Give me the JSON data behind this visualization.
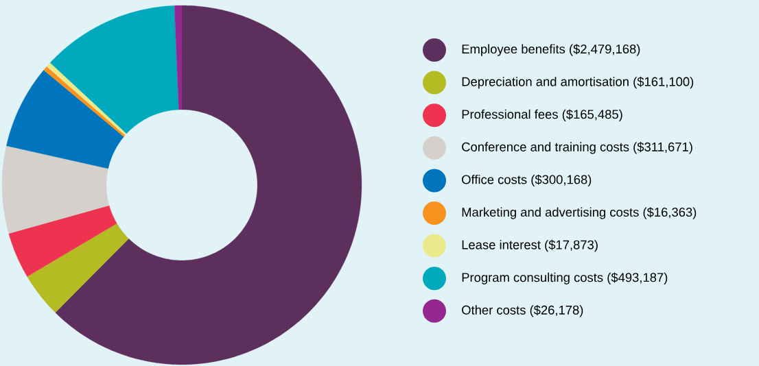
{
  "chart_data": {
    "type": "donut",
    "categories": [
      "Employee benefits ($2,479,168)",
      "Depreciation and amortisation ($161,100)",
      "Professional fees ($165,485)",
      "Conference and training costs ($311,671)",
      "Office costs ($300,168)",
      "Marketing and advertising costs ($16,363)",
      "Lease interest ($17,873)",
      "Program consulting costs ($493,187)",
      "Other costs ($26,178)"
    ],
    "values": [
      2479168,
      161100,
      165485,
      311671,
      300168,
      16363,
      17873,
      493187,
      26178
    ],
    "colors": [
      "#5c2f5c",
      "#b5bb23",
      "#ee3350",
      "#d4d0cb",
      "#0074bd",
      "#f7921e",
      "#eaea8d",
      "#00aabc",
      "#952790"
    ],
    "legend": "right"
  }
}
